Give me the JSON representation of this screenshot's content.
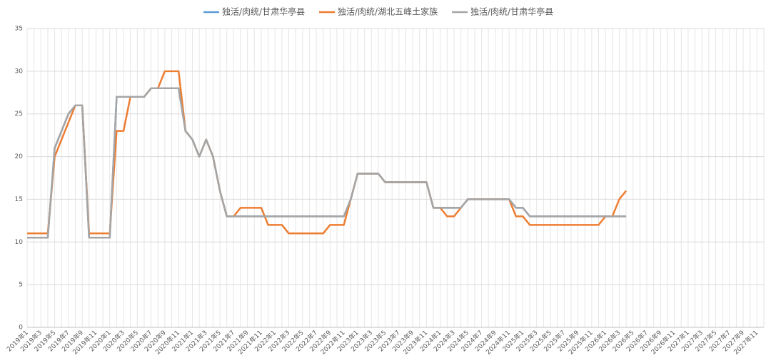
{
  "chart_data": {
    "type": "line",
    "categories": [
      "2019年1",
      null,
      "2019年3",
      null,
      "2019年5",
      null,
      "2019年7",
      null,
      "2019年9",
      null,
      "2019年11",
      null,
      "2020年1",
      null,
      "2020年3",
      null,
      "2020年5",
      null,
      "2020年7",
      null,
      "2020年9",
      null,
      "2020年11",
      null,
      "2021年1",
      null,
      "2021年3",
      null,
      "2021年5",
      null,
      "2021年7",
      null,
      "2021年9",
      null,
      "2021年11",
      null,
      "2022年1",
      null,
      "2022年3",
      null,
      "2022年5",
      null,
      "2022年7",
      null,
      "2022年9",
      null,
      "2022年11",
      null,
      "2023年1",
      null,
      "2023年3",
      null,
      "2023年5",
      null,
      "2023年7",
      null,
      "2023年9",
      null,
      "2023年11",
      null,
      "2024年1",
      null,
      "2024年3",
      null,
      "2024年5",
      null,
      "2024年7",
      null,
      "2024年9",
      null,
      "2024年11",
      null,
      "2025年1",
      null,
      "2025年3",
      null,
      "2025年5",
      null,
      "2025年7",
      null,
      "2025年9",
      null,
      "2025年11",
      null,
      "2026年1",
      null,
      "2026年3",
      null,
      "2026年5",
      null,
      "2026年7",
      null,
      "2026年9",
      null,
      "2026年11",
      null,
      "2027年1",
      null,
      "2027年3",
      null,
      "2027年5",
      null,
      "2027年7",
      null,
      "2027年9",
      null,
      "2027年11",
      null
    ],
    "series": [
      {
        "name": "独活/肉统/甘肃华亭县",
        "color": "#5b9bd5",
        "values": [
          10.5,
          10.5,
          10.5,
          10.5,
          21,
          23,
          25,
          26,
          26,
          10.5,
          10.5,
          10.5,
          10.5,
          27,
          27,
          27,
          27,
          27,
          28,
          28,
          28,
          28,
          28,
          23,
          22,
          20,
          22,
          20,
          16,
          13,
          13,
          13,
          13,
          13,
          13,
          13,
          13,
          13,
          13,
          13,
          13,
          13,
          13,
          13,
          13,
          13,
          13,
          15,
          18,
          18,
          18,
          18,
          17,
          17,
          17,
          17,
          17,
          17,
          17,
          14,
          14,
          14,
          14,
          14,
          15,
          15,
          15,
          15,
          15,
          15,
          15,
          14,
          14,
          13,
          13,
          13,
          13,
          13,
          13,
          13,
          13,
          13,
          13,
          13,
          13,
          13,
          13,
          13,
          null,
          null,
          null,
          null,
          null,
          null,
          null,
          null,
          null,
          null,
          null,
          null,
          null,
          null,
          null,
          null,
          null,
          null,
          null,
          null
        ]
      },
      {
        "name": "独活/肉统/湖北五峰土家族",
        "color": "#ed7d31",
        "values": [
          11,
          11,
          11,
          11,
          20,
          22,
          24,
          26,
          26,
          11,
          11,
          11,
          11,
          23,
          23,
          27,
          27,
          27,
          28,
          28,
          30,
          30,
          30,
          23,
          22,
          20,
          22,
          20,
          16,
          13,
          13,
          14,
          14,
          14,
          14,
          12,
          12,
          12,
          11,
          11,
          11,
          11,
          11,
          11,
          12,
          12,
          12,
          15,
          18,
          18,
          18,
          18,
          17,
          17,
          17,
          17,
          17,
          17,
          17,
          14,
          14,
          13,
          13,
          14,
          15,
          15,
          15,
          15,
          15,
          15,
          15,
          13,
          13,
          12,
          12,
          12,
          12,
          12,
          12,
          12,
          12,
          12,
          12,
          12,
          13,
          13,
          15,
          16,
          null,
          null,
          null,
          null,
          null,
          null,
          null,
          null,
          null,
          null,
          null,
          null,
          null,
          null,
          null,
          null,
          null,
          null,
          null,
          null
        ]
      },
      {
        "name": "独活/肉统/甘肃华亭县",
        "color": "#a5a5a5",
        "values": [
          10.5,
          10.5,
          10.5,
          10.5,
          21,
          23,
          25,
          26,
          26,
          10.5,
          10.5,
          10.5,
          10.5,
          27,
          27,
          27,
          27,
          27,
          28,
          28,
          28,
          28,
          28,
          23,
          22,
          20,
          22,
          20,
          16,
          13,
          13,
          13,
          13,
          13,
          13,
          13,
          13,
          13,
          13,
          13,
          13,
          13,
          13,
          13,
          13,
          13,
          13,
          15,
          18,
          18,
          18,
          18,
          17,
          17,
          17,
          17,
          17,
          17,
          17,
          14,
          14,
          14,
          14,
          14,
          15,
          15,
          15,
          15,
          15,
          15,
          15,
          14,
          14,
          13,
          13,
          13,
          13,
          13,
          13,
          13,
          13,
          13,
          13,
          13,
          13,
          13,
          13,
          13,
          null,
          null,
          null,
          null,
          null,
          null,
          null,
          null,
          null,
          null,
          null,
          null,
          null,
          null,
          null,
          null,
          null,
          null,
          null,
          null
        ]
      }
    ],
    "ylim": [
      0,
      35
    ],
    "yticks": [
      0,
      5,
      10,
      15,
      20,
      25,
      30,
      35
    ],
    "grid": true,
    "legend": "top"
  }
}
